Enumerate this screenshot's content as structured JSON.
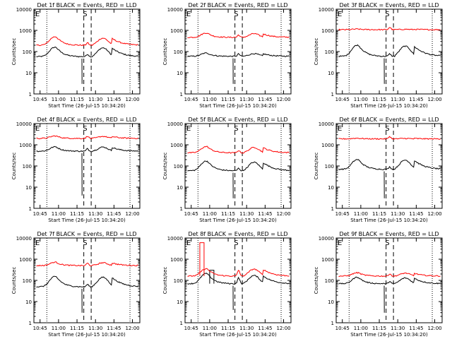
{
  "common": {
    "ylabel": "Counts/sec",
    "xlabel": "Start Time (26-Jul-15 10:34:20)",
    "y_ticks": [
      "1",
      "10",
      "100",
      "1000",
      "10000"
    ],
    "x_ticks": [
      "10:45",
      "11:00",
      "11:15",
      "11:30",
      "11:45",
      "12:00"
    ],
    "ylim": [
      1,
      10000
    ],
    "x_range_minutes": [
      10.0,
      96.0
    ],
    "dotted_marker_minutes": [
      20.5,
      88.0
    ],
    "dashed_marker_minutes": [
      50.5,
      56.5
    ],
    "marker_labels": {
      "E_left": "E",
      "S": "S",
      "E_right": "E"
    },
    "events_color": "#000000",
    "lld_color": "#ff0000"
  },
  "chart_data": [
    {
      "type": "line",
      "title": "Det 1f BLACK = Events, RED = LLD",
      "series": [
        {
          "name": "Events",
          "color": "#000000",
          "base": 58,
          "peak1": 160,
          "peak2": 150,
          "drop": 3,
          "spike": 0
        },
        {
          "name": "LLD",
          "color": "#ff0000",
          "base": 200,
          "peak1": 500,
          "peak2": 430,
          "drop": 0,
          "spike": 0
        }
      ]
    },
    {
      "type": "line",
      "title": "Det 2f BLACK = Events, RED = LLD",
      "series": [
        {
          "name": "Events",
          "color": "#000000",
          "base": 60,
          "peak1": 85,
          "peak2": 80,
          "drop": 3,
          "spike": 0
        },
        {
          "name": "LLD",
          "color": "#ff0000",
          "base": 470,
          "peak1": 750,
          "peak2": 700,
          "drop": 0,
          "spike": 0
        }
      ]
    },
    {
      "type": "line",
      "title": "Det 3f BLACK = Events, RED = LLD",
      "series": [
        {
          "name": "Events",
          "color": "#000000",
          "base": 60,
          "peak1": 200,
          "peak2": 180,
          "drop": 3,
          "spike": 0
        },
        {
          "name": "LLD",
          "color": "#ff0000",
          "base": 1080,
          "peak1": 1150,
          "peak2": 1130,
          "drop": 0,
          "spike": 0
        }
      ]
    },
    {
      "type": "line",
      "title": "Det 4f BLACK = Events, RED = LLD",
      "series": [
        {
          "name": "Events",
          "color": "#000000",
          "base": 500,
          "peak1": 800,
          "peak2": 780,
          "drop": 4,
          "spike": 0
        },
        {
          "name": "LLD",
          "color": "#ff0000",
          "base": 2000,
          "peak1": 2600,
          "peak2": 2500,
          "drop": 0,
          "spike": 0
        }
      ]
    },
    {
      "type": "line",
      "title": "Det 5f BLACK = Events, RED = LLD",
      "series": [
        {
          "name": "Events",
          "color": "#000000",
          "base": 60,
          "peak1": 170,
          "peak2": 150,
          "drop": 3,
          "spike": 0
        },
        {
          "name": "LLD",
          "color": "#ff0000",
          "base": 420,
          "peak1": 820,
          "peak2": 750,
          "drop": 0,
          "spike": 0
        }
      ]
    },
    {
      "type": "line",
      "title": "Det 6f BLACK = Events, RED = LLD",
      "series": [
        {
          "name": "Events",
          "color": "#000000",
          "base": 70,
          "peak1": 200,
          "peak2": 190,
          "drop": 3,
          "spike": 0
        },
        {
          "name": "LLD",
          "color": "#ff0000",
          "base": 1900,
          "peak1": 2050,
          "peak2": 2000,
          "drop": 0,
          "spike": 0
        }
      ]
    },
    {
      "type": "line",
      "title": "Det 7f BLACK = Events, RED = LLD",
      "series": [
        {
          "name": "Events",
          "color": "#000000",
          "base": 50,
          "peak1": 150,
          "peak2": 140,
          "drop": 3,
          "spike": 0
        },
        {
          "name": "LLD",
          "color": "#ff0000",
          "base": 500,
          "peak1": 720,
          "peak2": 680,
          "drop": 0,
          "spike": 0
        }
      ]
    },
    {
      "type": "line",
      "title": "Det 8f BLACK = Events, RED = LLD",
      "series": [
        {
          "name": "Events",
          "color": "#000000",
          "base": 70,
          "peak1": 210,
          "peak2": 170,
          "drop": 4,
          "spike": 300
        },
        {
          "name": "LLD",
          "color": "#ff0000",
          "base": 160,
          "peak1": 350,
          "peak2": 340,
          "drop": 0,
          "spike": 6000
        }
      ]
    },
    {
      "type": "line",
      "title": "Det 9f BLACK = Events, RED = LLD",
      "series": [
        {
          "name": "Events",
          "color": "#000000",
          "base": 70,
          "peak1": 140,
          "peak2": 130,
          "drop": 3,
          "spike": 0
        },
        {
          "name": "LLD",
          "color": "#ff0000",
          "base": 160,
          "peak1": 230,
          "peak2": 220,
          "drop": 0,
          "spike": 0
        }
      ]
    }
  ]
}
